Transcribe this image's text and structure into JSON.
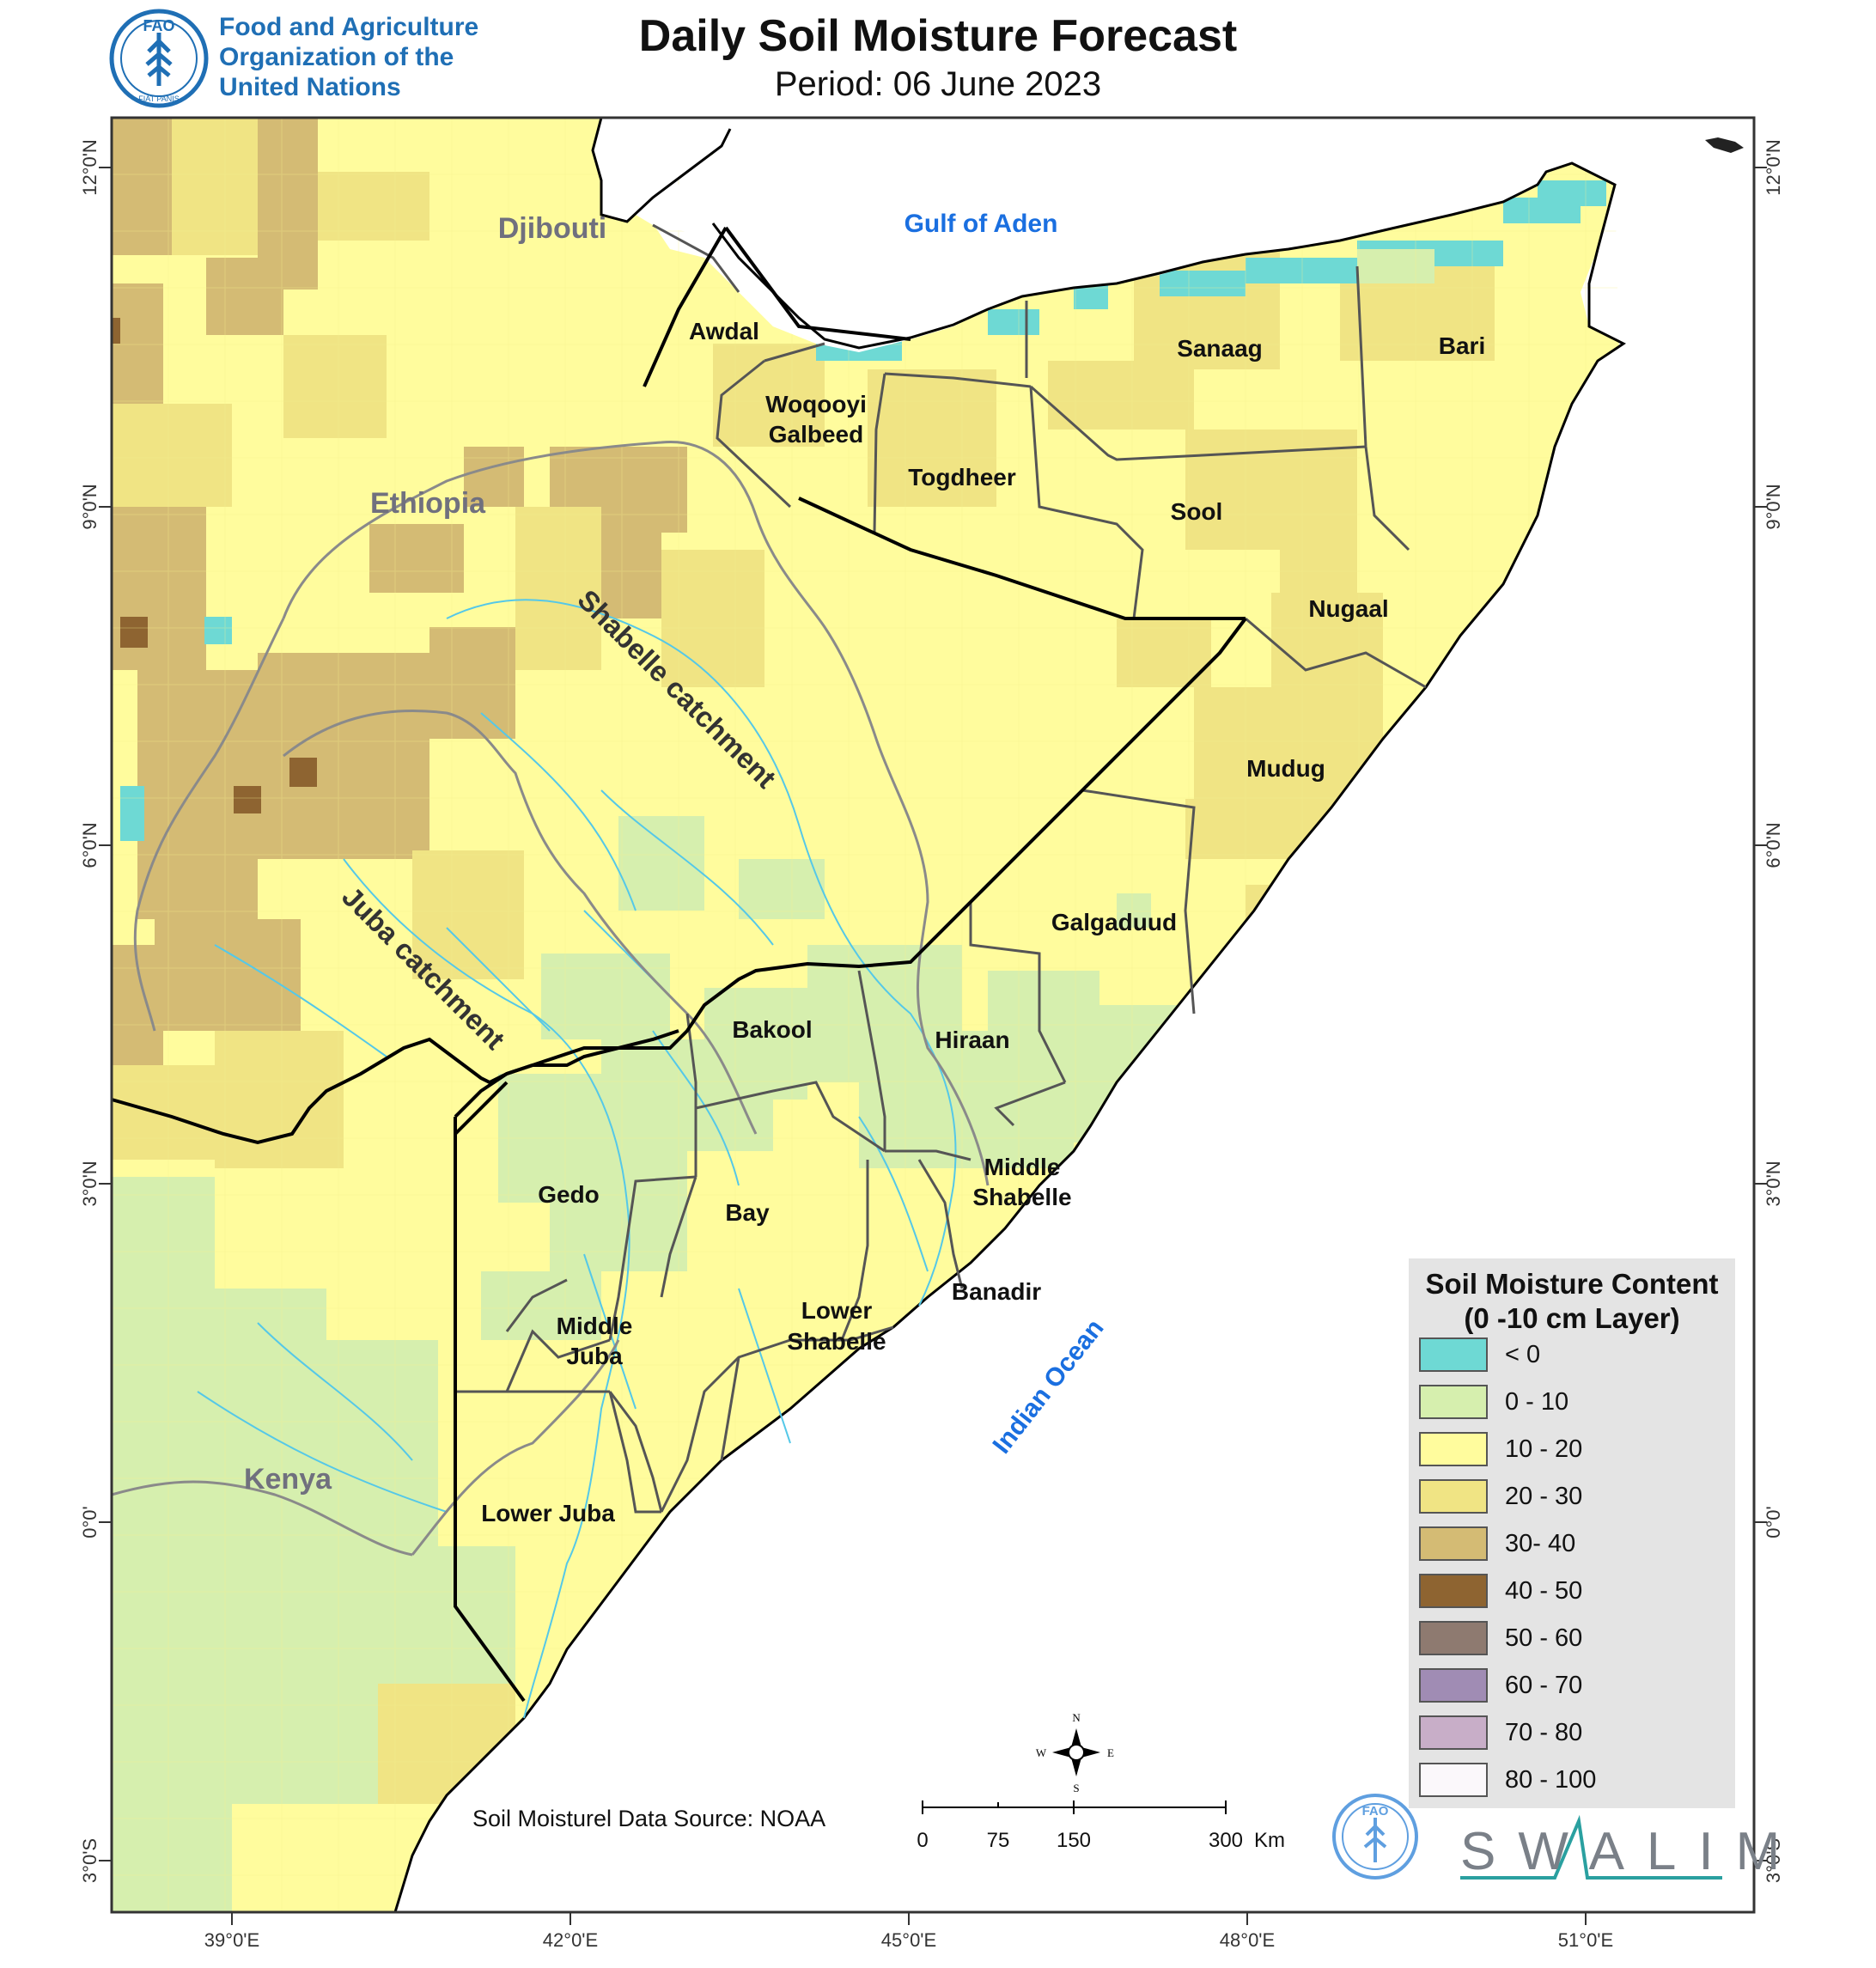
{
  "header": {
    "org_line1": "Food and Agriculture",
    "org_line2": "Organization of the",
    "org_line3": "United Nations",
    "logo_text": "FAO",
    "logo_motto": "FIAT PANIS",
    "title": "Daily Soil Moisture Forecast",
    "subtitle": "Period: 06 June 2023"
  },
  "map": {
    "lat_labels": [
      "12°0'N",
      "9°0'N",
      "6°0'N",
      "3°0'N",
      "0°0'",
      "3°0'S"
    ],
    "lon_labels": [
      "39°0'E",
      "42°0'E",
      "45°0'E",
      "48°0'E",
      "51°0'E"
    ],
    "water_labels": [
      "Gulf of Aden",
      "Indian Ocean"
    ],
    "country_labels": [
      "Djibouti",
      "Ethiopia",
      "Kenya"
    ],
    "region_labels": [
      "Awdal",
      "Woqooyi",
      "Galbeed",
      "Togdheer",
      "Sanaag",
      "Bari",
      "Sool",
      "Nugaal",
      "Mudug",
      "Galgaduud",
      "Hiraan",
      "Bakool",
      "Gedo",
      "Bay",
      "Middle",
      "Shabelle",
      "Banadir",
      "Lower",
      "Shabelle",
      "Middle",
      "Juba",
      "Lower Juba"
    ],
    "catchment_labels": [
      "Shabelle catchment",
      "Juba catchment"
    ],
    "water_color": "#1a6fe0",
    "river_color": "#55c8e8",
    "boundary_color": "#555555",
    "border_color": "#000000",
    "compass": {
      "n": "N",
      "s": "S",
      "e": "E",
      "w": "W"
    },
    "scale_bar": {
      "ticks": [
        "0",
        "75",
        "150",
        "300"
      ],
      "unit": "Km"
    }
  },
  "legend": {
    "title_line1": "Soil Moisture Content",
    "title_line2": "(0 -10 cm Layer)",
    "items": [
      {
        "label": "< 0",
        "color": "#6ed9d4"
      },
      {
        "label": "0 - 10",
        "color": "#d6efae"
      },
      {
        "label": "10 - 20",
        "color": "#fffc9d"
      },
      {
        "label": "20 - 30",
        "color": "#f0e484"
      },
      {
        "label": "30- 40",
        "color": "#d4bb74"
      },
      {
        "label": "40 - 50",
        "color": "#8e6431"
      },
      {
        "label": "50 - 60",
        "color": "#8e7a70"
      },
      {
        "label": "60 - 70",
        "color": "#a08cb4"
      },
      {
        "label": "70 - 80",
        "color": "#c8aec8"
      },
      {
        "label": "80 - 100",
        "color": "#fbf8fb"
      }
    ]
  },
  "footer": {
    "source": "Soil Moisturel Data Source: NOAA",
    "partner": "SWALIM"
  }
}
